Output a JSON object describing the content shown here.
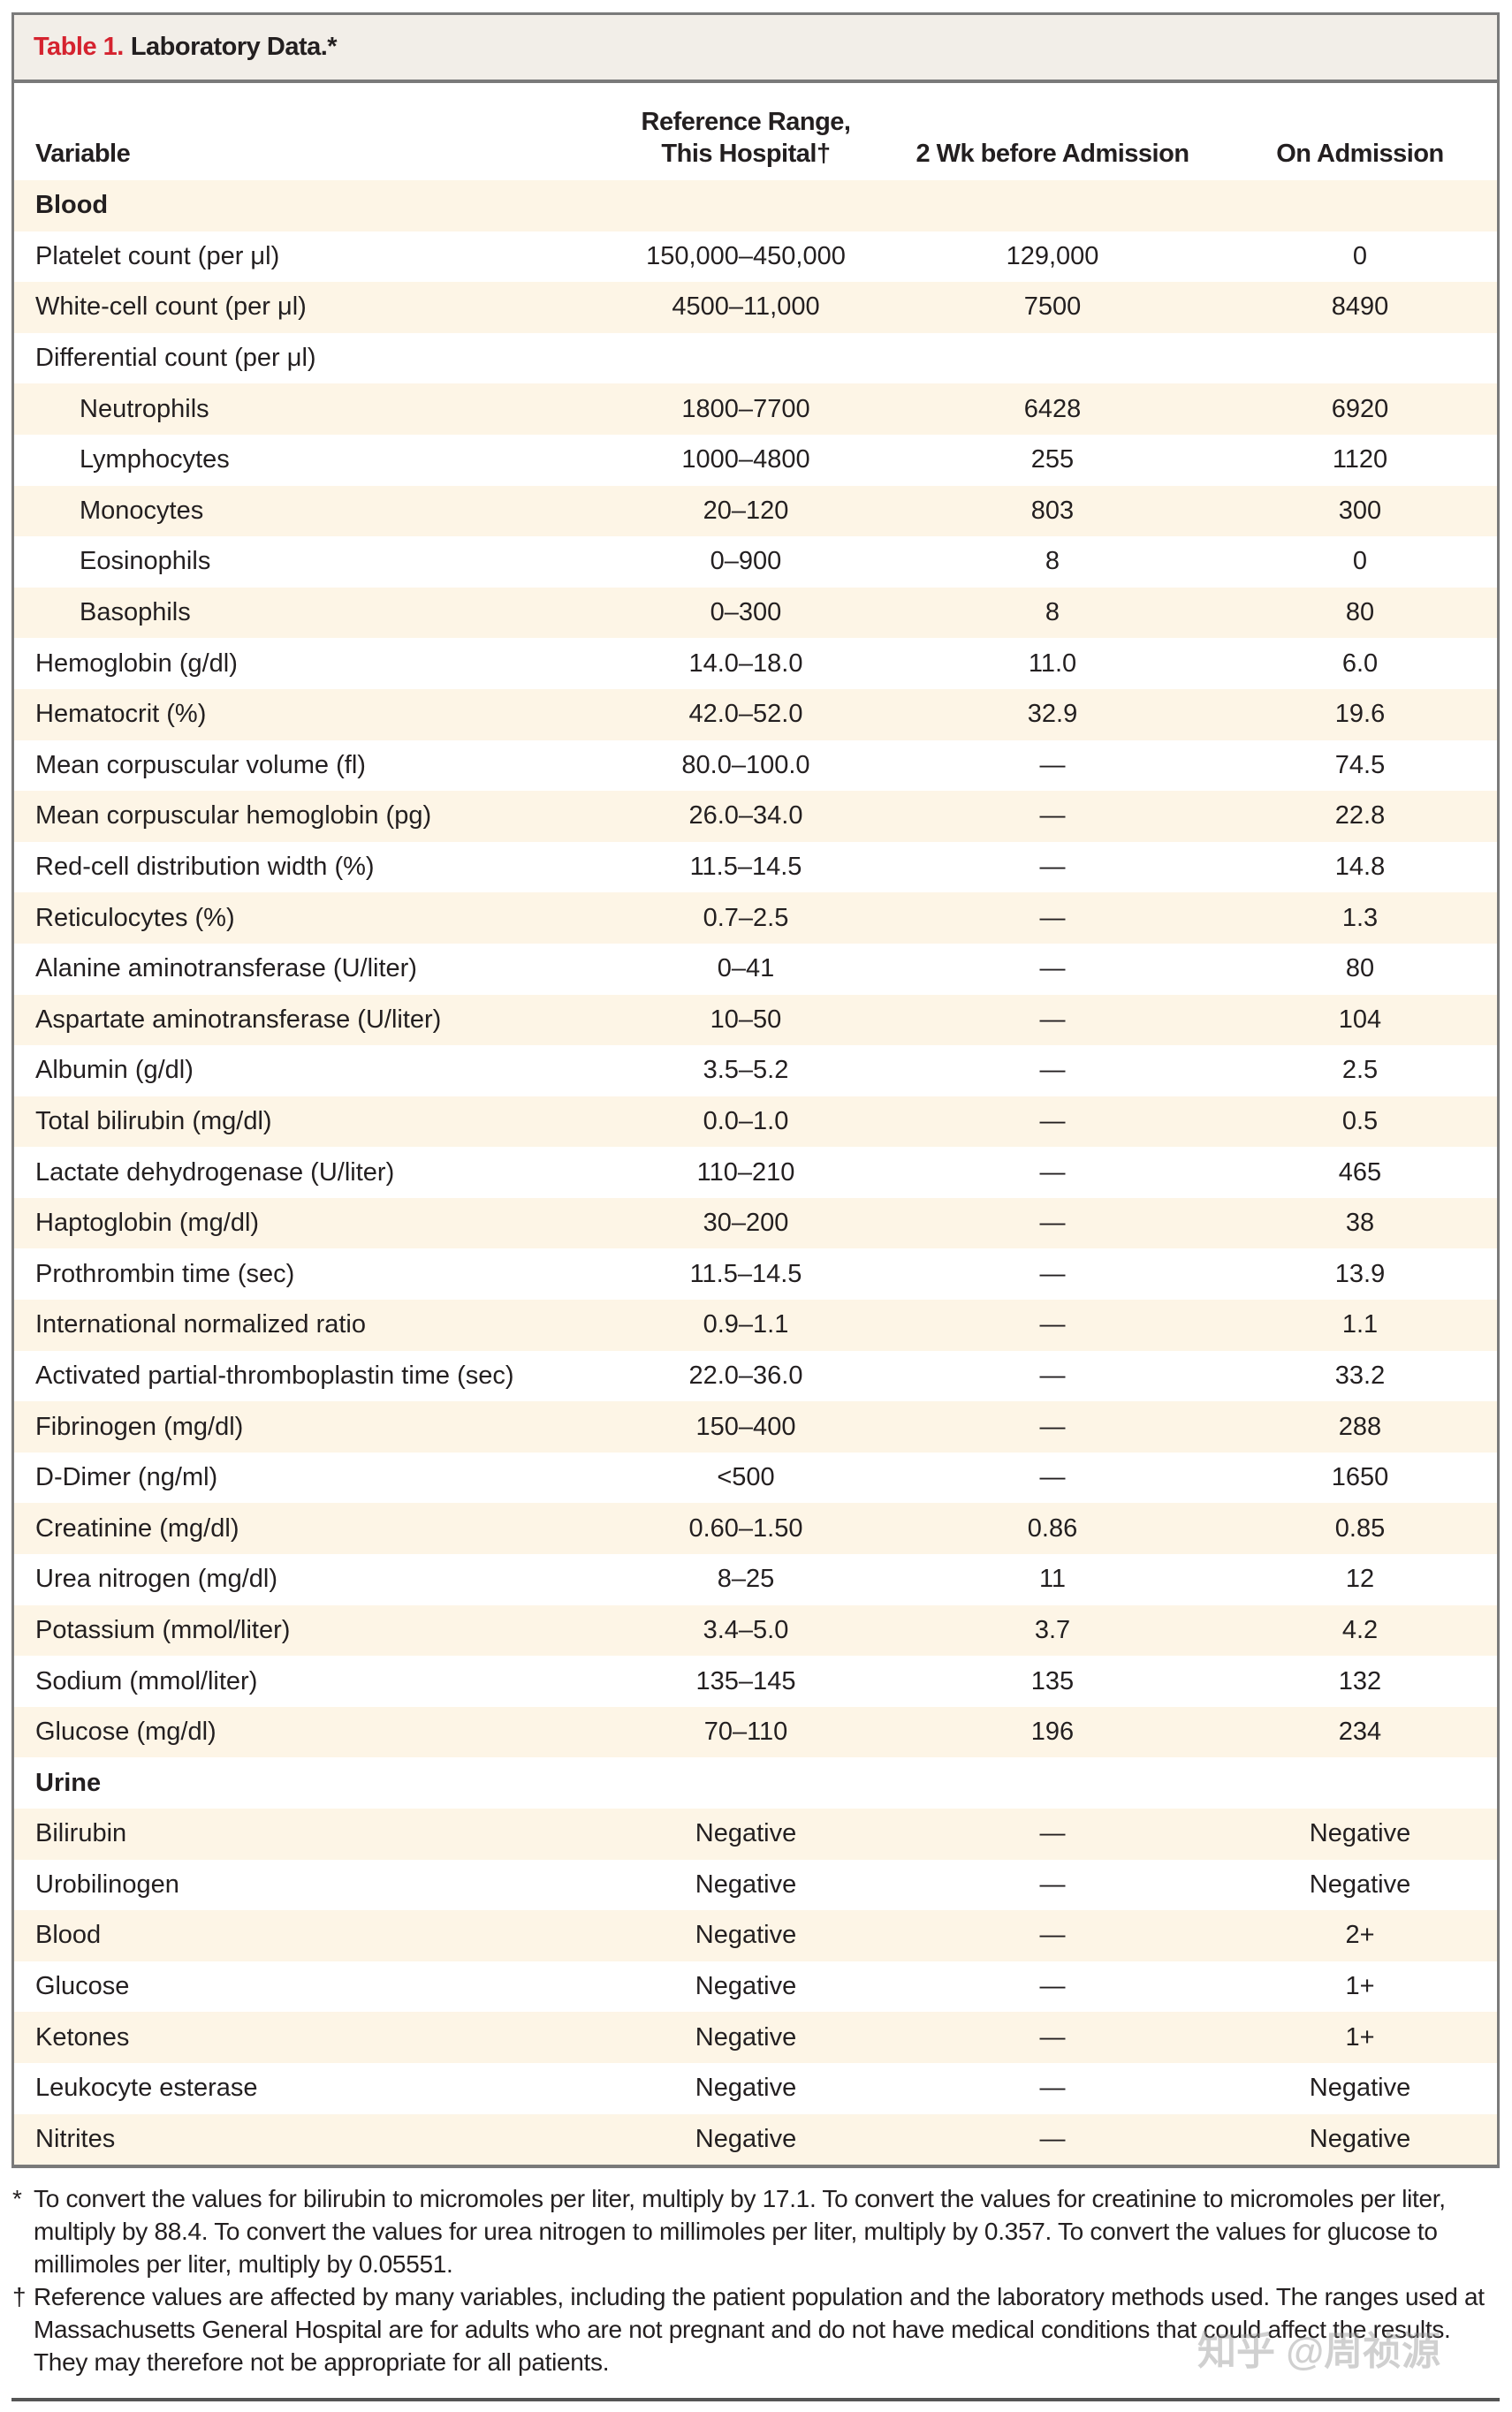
{
  "title": {
    "number": "Table 1.",
    "text": "Laboratory Data.*"
  },
  "columns": [
    "Variable",
    "Reference Range,",
    "This Hospital†",
    "2 Wk before Admission",
    "On Admission"
  ],
  "rows": [
    {
      "v": "Blood",
      "r": "",
      "w": "",
      "a": "",
      "type": "section"
    },
    {
      "v": "Platelet count (per μl)",
      "r": "150,000–450,000",
      "w": "129,000",
      "a": "0"
    },
    {
      "v": "White-cell count (per μl)",
      "r": "4500–11,000",
      "w": "7500",
      "a": "8490"
    },
    {
      "v": "Differential count (per μl)",
      "r": "",
      "w": "",
      "a": ""
    },
    {
      "v": "Neutrophils",
      "r": "1800–7700",
      "w": "6428",
      "a": "6920",
      "type": "sub"
    },
    {
      "v": "Lymphocytes",
      "r": "1000–4800",
      "w": "255",
      "a": "1120",
      "type": "sub"
    },
    {
      "v": "Monocytes",
      "r": "20–120",
      "w": "803",
      "a": "300",
      "type": "sub"
    },
    {
      "v": "Eosinophils",
      "r": "0–900",
      "w": "8",
      "a": "0",
      "type": "sub"
    },
    {
      "v": "Basophils",
      "r": "0–300",
      "w": "8",
      "a": "80",
      "type": "sub"
    },
    {
      "v": "Hemoglobin (g/dl)",
      "r": "14.0–18.0",
      "w": "11.0",
      "a": "6.0"
    },
    {
      "v": "Hematocrit (%)",
      "r": "42.0–52.0",
      "w": "32.9",
      "a": "19.6"
    },
    {
      "v": "Mean corpuscular volume (fl)",
      "r": "80.0–100.0",
      "w": "—",
      "a": "74.5"
    },
    {
      "v": "Mean corpuscular hemoglobin (pg)",
      "r": "26.0–34.0",
      "w": "—",
      "a": "22.8"
    },
    {
      "v": "Red-cell distribution width (%)",
      "r": "11.5–14.5",
      "w": "—",
      "a": "14.8"
    },
    {
      "v": "Reticulocytes (%)",
      "r": "0.7–2.5",
      "w": "—",
      "a": "1.3"
    },
    {
      "v": "Alanine aminotransferase (U/liter)",
      "r": "0–41",
      "w": "—",
      "a": "80"
    },
    {
      "v": "Aspartate aminotransferase (U/liter)",
      "r": "10–50",
      "w": "—",
      "a": "104"
    },
    {
      "v": "Albumin (g/dl)",
      "r": "3.5–5.2",
      "w": "—",
      "a": "2.5"
    },
    {
      "v": "Total bilirubin (mg/dl)",
      "r": "0.0–1.0",
      "w": "—",
      "a": "0.5"
    },
    {
      "v": "Lactate dehydrogenase (U/liter)",
      "r": "110–210",
      "w": "—",
      "a": "465"
    },
    {
      "v": "Haptoglobin (mg/dl)",
      "r": "30–200",
      "w": "—",
      "a": "38"
    },
    {
      "v": "Prothrombin time (sec)",
      "r": "11.5–14.5",
      "w": "—",
      "a": "13.9"
    },
    {
      "v": "International normalized ratio",
      "r": "0.9–1.1",
      "w": "—",
      "a": "1.1"
    },
    {
      "v": "Activated partial-thromboplastin time (sec)",
      "r": "22.0–36.0",
      "w": "—",
      "a": "33.2"
    },
    {
      "v": "Fibrinogen (mg/dl)",
      "r": "150–400",
      "w": "—",
      "a": "288"
    },
    {
      "v": "D-Dimer (ng/ml)",
      "r": "<500",
      "w": "—",
      "a": "1650"
    },
    {
      "v": "Creatinine (mg/dl)",
      "r": "0.60–1.50",
      "w": "0.86",
      "a": "0.85"
    },
    {
      "v": "Urea nitrogen (mg/dl)",
      "r": "8–25",
      "w": "11",
      "a": "12"
    },
    {
      "v": "Potassium (mmol/liter)",
      "r": "3.4–5.0",
      "w": "3.7",
      "a": "4.2"
    },
    {
      "v": "Sodium (mmol/liter)",
      "r": "135–145",
      "w": "135",
      "a": "132"
    },
    {
      "v": "Glucose (mg/dl)",
      "r": "70–110",
      "w": "196",
      "a": "234"
    },
    {
      "v": "Urine",
      "r": "",
      "w": "",
      "a": "",
      "type": "section"
    },
    {
      "v": "Bilirubin",
      "r": "Negative",
      "w": "—",
      "a": "Negative"
    },
    {
      "v": "Urobilinogen",
      "r": "Negative",
      "w": "—",
      "a": "Negative"
    },
    {
      "v": "Blood",
      "r": "Negative",
      "w": "—",
      "a": "2+"
    },
    {
      "v": "Glucose",
      "r": "Negative",
      "w": "—",
      "a": "1+"
    },
    {
      "v": "Ketones",
      "r": "Negative",
      "w": "—",
      "a": "1+"
    },
    {
      "v": "Leukocyte esterase",
      "r": "Negative",
      "w": "—",
      "a": "Negative"
    },
    {
      "v": "Nitrites",
      "r": "Negative",
      "w": "—",
      "a": "Negative"
    }
  ],
  "footnotes": [
    {
      "mark": "*",
      "text": "To convert the values for bilirubin to micromoles per liter, multiply by 17.1. To convert the values for creatinine to micromoles per liter, multiply by 88.4. To convert the values for urea nitrogen to millimoles per liter, multiply by 0.357. To convert the values for glucose to millimoles per liter, multiply by 0.05551."
    },
    {
      "mark": "†",
      "text": "Reference values are affected by many variables, including the patient population and the laboratory methods used. The ranges used at Massachusetts General Hospital are for adults who are not pregnant and do not have medical conditions that could affect the results. They may therefore not be appropriate for all patients."
    }
  ],
  "watermark": "知乎 @周祯源",
  "colors": {
    "accent": "#d5232f",
    "title_band": "#f2eee8",
    "stripe": "#fdf5e6",
    "border": "#7a7a7a"
  }
}
